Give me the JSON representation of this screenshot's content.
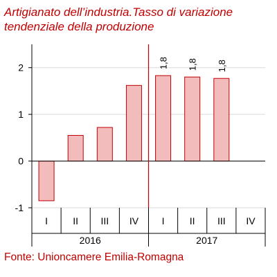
{
  "chart_data": {
    "type": "bar",
    "title_lines": [
      "Artigianato dell’industria.Tasso di variazione",
      "tendenziale della produzione"
    ],
    "categories": [
      "I",
      "II",
      "III",
      "IV",
      "I",
      "II",
      "III",
      "IV"
    ],
    "year_groups": [
      {
        "label": "2016",
        "count": 4
      },
      {
        "label": "2017",
        "count": 4
      }
    ],
    "values": [
      -0.85,
      0.55,
      0.72,
      1.62,
      1.83,
      1.8,
      1.77,
      null
    ],
    "data_labels": [
      "",
      "",
      "",
      "",
      "1,8",
      "1,8",
      "1,8",
      ""
    ],
    "ylim": [
      -1,
      2.5
    ],
    "yticks": [
      -1,
      0,
      1,
      2
    ],
    "gridlines": true,
    "divider_after_category": 3,
    "colors": {
      "bar_fill": "#f2bcbc",
      "bar_stroke": "#c00000",
      "divider": "#c00000",
      "grid": "#d9d9d9",
      "title": "#c00000"
    },
    "source": "Fonte: Unioncamere Emilia-Romagna"
  }
}
